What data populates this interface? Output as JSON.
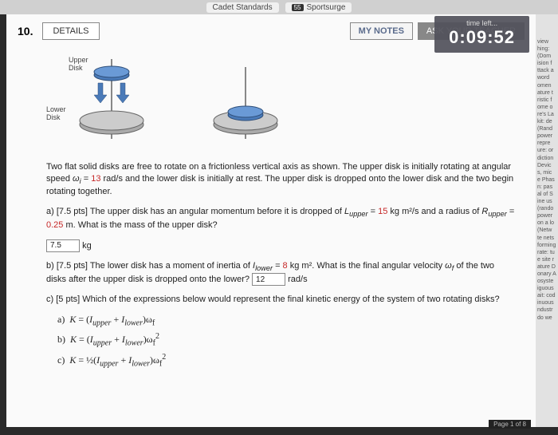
{
  "tabs": {
    "left": "Cadet Standards",
    "right": "Sportsurge",
    "badge": "55"
  },
  "header": {
    "qnum": "10.",
    "details": "DETAILS",
    "mynotes": "MY NOTES",
    "ask": "ASK YOUR TEACHER"
  },
  "timer": {
    "label": "time left...",
    "value": "0:09:52"
  },
  "diagram": {
    "upper_label": "Upper\nDisk",
    "lower_label": "Lower\nDisk"
  },
  "problem": {
    "intro1": "Two flat solid disks are free to rotate on a frictionless vertical axis as shown. The upper disk is initially rotating at angular speed ",
    "omega_i": "ω",
    "eq1": " = ",
    "val1": "13",
    "units1": " rad/s and the lower disk is initially at rest. The upper disk is dropped onto the lower disk and the two begin rotating together.",
    "a1": "a) [7.5 pts] The upper disk has an angular momentum before it is dropped of ",
    "Lup": "L",
    "Lup_sub": "upper",
    "a1b": " = ",
    "a1v": "15",
    "a1u": " kg m²/s and a radius of ",
    "Rup": "R",
    "Rup_sub": "upper",
    "a1c": " = ",
    "a1v2": "0.25",
    "a1d": " m. What is the mass of the upper disk?",
    "a_ans": "7.5",
    "a_unit": "kg",
    "b1": "b) [7.5 pts] The lower disk has a moment of inertia of ",
    "Ilow": "I",
    "Ilow_sub": "lower",
    "b1b": " = ",
    "b1v": "8",
    "b1u": " kg m². What is the final angular velocity ",
    "wf": "ω",
    "wf_sub": "f",
    "b1c": " of the two disks after the upper disk is dropped onto the lower?",
    "b_ans": "12",
    "b_unit": "rad/s",
    "c1": "c) [5 pts] Which of the expressions below would represent the final kinetic energy of the system of two rotating disks?",
    "opt_a": "a)  K = (Iupper + Ilower)ωf",
    "opt_b": "b)  K = (Iupper + Ilower)ωf²",
    "opt_c": "c)  K = ½(Iupper + Ilower)ωf²"
  },
  "sideclip": [
    "view",
    "hing:",
    "(Dom",
    "ision f",
    "ttack a",
    "word",
    "omen",
    "ature t",
    "ristic f",
    "ome o",
    "re's La",
    "kit: de",
    "(Rand",
    "power",
    "repre",
    "ure: or",
    "diction",
    "Devic",
    "s, mic",
    "e Phas",
    "n: pas",
    "al of S",
    "ine us",
    "(rando",
    "power",
    "on a lo",
    "(Netw",
    "te nets",
    "forming",
    "rate: tu",
    "e site r",
    "ature D",
    "onary A",
    "osyste",
    "iguous",
    "ait: cod",
    "inuous",
    "ndustr",
    "do we"
  ],
  "pageind": "Page 1 of 8"
}
